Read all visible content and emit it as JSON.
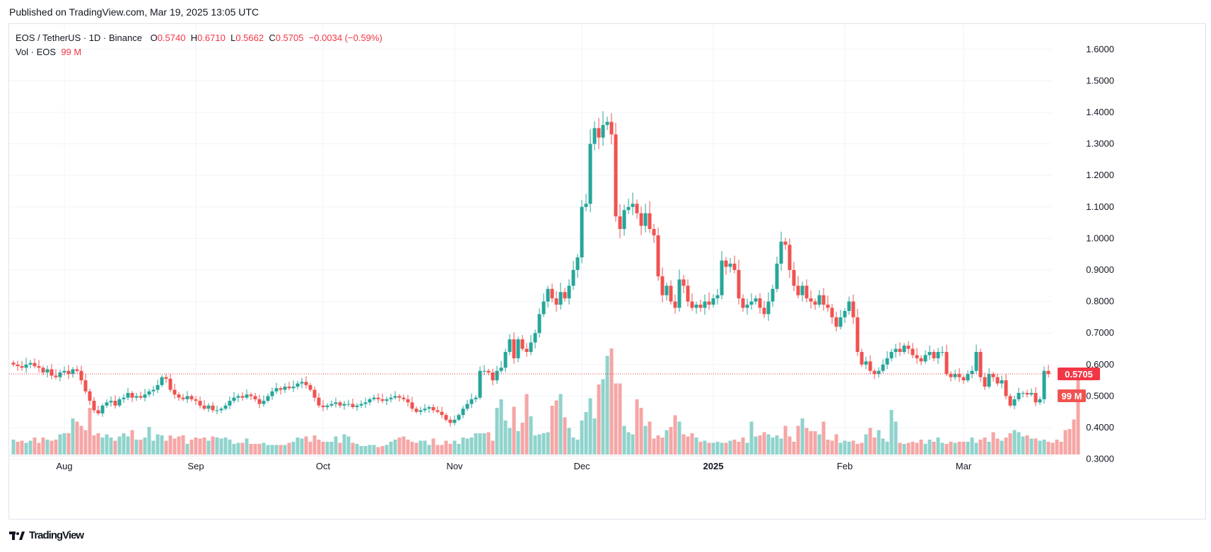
{
  "header": {
    "published": "Published on TradingView.com, Mar 19, 2025 13:05 UTC"
  },
  "legend": {
    "symbol": "EOS / TetherUS · 1D · Binance",
    "o_label": "O",
    "o_value": "0.5740",
    "h_label": "H",
    "h_value": "0.6710",
    "l_label": "L",
    "l_value": "0.5662",
    "c_label": "C",
    "c_value": "0.5705",
    "change": "−0.0034 (−0.59%)",
    "vol_label": "Vol · EOS",
    "vol_value": "99 M"
  },
  "footer": {
    "logo_text": "TradingView"
  },
  "colors": {
    "up": "#26a69a",
    "down": "#ef5350",
    "up_vol": "#8fd3cc",
    "down_vol": "#f5a6a5",
    "grid": "#f0f3fa",
    "price_line": "#f23645"
  },
  "chart_data": {
    "type": "candlestick",
    "title": "EOS / TetherUS · 1D · Binance",
    "ylim": [
      0.27,
      1.66
    ],
    "y_ticks": [
      "1.6000",
      "1.5000",
      "1.4000",
      "1.3000",
      "1.2000",
      "1.1000",
      "1.0000",
      "0.9000",
      "0.8000",
      "0.7000",
      "0.6000",
      "0.5000",
      "0.4000",
      "0.3000"
    ],
    "x_ticks": [
      {
        "label": "Aug",
        "index": 12
      },
      {
        "label": "Sep",
        "index": 43
      },
      {
        "label": "Oct",
        "index": 73
      },
      {
        "label": "Nov",
        "index": 104
      },
      {
        "label": "Dec",
        "index": 134
      },
      {
        "label": "2025",
        "index": 165
      },
      {
        "label": "Feb",
        "index": 196
      },
      {
        "label": "Mar",
        "index": 224
      }
    ],
    "last_price": "0.5705",
    "last_volume": "99 M",
    "closes": [
      0.6,
      0.595,
      0.59,
      0.6,
      0.605,
      0.595,
      0.59,
      0.575,
      0.585,
      0.565,
      0.56,
      0.575,
      0.58,
      0.57,
      0.585,
      0.58,
      0.55,
      0.515,
      0.485,
      0.455,
      0.445,
      0.47,
      0.48,
      0.485,
      0.47,
      0.49,
      0.495,
      0.51,
      0.495,
      0.5,
      0.495,
      0.505,
      0.515,
      0.52,
      0.535,
      0.56,
      0.555,
      0.52,
      0.505,
      0.495,
      0.49,
      0.5,
      0.49,
      0.485,
      0.47,
      0.46,
      0.47,
      0.455,
      0.455,
      0.46,
      0.47,
      0.485,
      0.495,
      0.5,
      0.495,
      0.505,
      0.5,
      0.49,
      0.475,
      0.485,
      0.5,
      0.515,
      0.525,
      0.52,
      0.53,
      0.525,
      0.53,
      0.54,
      0.545,
      0.535,
      0.52,
      0.495,
      0.47,
      0.465,
      0.47,
      0.475,
      0.48,
      0.47,
      0.475,
      0.475,
      0.465,
      0.47,
      0.475,
      0.48,
      0.49,
      0.495,
      0.49,
      0.485,
      0.49,
      0.495,
      0.5,
      0.495,
      0.49,
      0.48,
      0.46,
      0.45,
      0.455,
      0.46,
      0.465,
      0.455,
      0.45,
      0.44,
      0.425,
      0.415,
      0.425,
      0.44,
      0.46,
      0.475,
      0.49,
      0.495,
      0.58,
      0.58,
      0.575,
      0.55,
      0.58,
      0.59,
      0.64,
      0.68,
      0.62,
      0.68,
      0.65,
      0.64,
      0.67,
      0.7,
      0.76,
      0.8,
      0.84,
      0.81,
      0.79,
      0.83,
      0.81,
      0.85,
      0.9,
      0.94,
      1.1,
      1.11,
      1.3,
      1.35,
      1.32,
      1.36,
      1.37,
      1.33,
      1.07,
      1.03,
      1.09,
      1.1,
      1.11,
      1.08,
      1.04,
      1.08,
      1.03,
      1.01,
      0.88,
      0.82,
      0.85,
      0.8,
      0.78,
      0.87,
      0.85,
      0.8,
      0.78,
      0.79,
      0.78,
      0.8,
      0.79,
      0.81,
      0.82,
      0.93,
      0.91,
      0.92,
      0.9,
      0.81,
      0.78,
      0.79,
      0.8,
      0.81,
      0.78,
      0.76,
      0.8,
      0.84,
      0.92,
      0.99,
      0.98,
      0.9,
      0.85,
      0.82,
      0.85,
      0.81,
      0.8,
      0.79,
      0.82,
      0.79,
      0.78,
      0.75,
      0.72,
      0.75,
      0.77,
      0.8,
      0.75,
      0.64,
      0.6,
      0.61,
      0.58,
      0.57,
      0.58,
      0.6,
      0.62,
      0.64,
      0.65,
      0.64,
      0.66,
      0.65,
      0.63,
      0.62,
      0.61,
      0.63,
      0.64,
      0.62,
      0.64,
      0.64,
      0.57,
      0.56,
      0.57,
      0.56,
      0.55,
      0.57,
      0.58,
      0.64,
      0.56,
      0.53,
      0.57,
      0.56,
      0.54,
      0.55,
      0.5,
      0.47,
      0.49,
      0.51,
      0.51,
      0.505,
      0.51,
      0.48,
      0.49,
      0.58,
      0.5705
    ],
    "volume_units": "relative to peak (1.0 = max bar)",
    "volumes": [
      0.14,
      0.12,
      0.13,
      0.11,
      0.13,
      0.16,
      0.11,
      0.16,
      0.14,
      0.13,
      0.14,
      0.19,
      0.2,
      0.2,
      0.34,
      0.31,
      0.27,
      0.23,
      0.44,
      0.18,
      0.2,
      0.16,
      0.19,
      0.16,
      0.13,
      0.17,
      0.2,
      0.17,
      0.23,
      0.14,
      0.14,
      0.16,
      0.26,
      0.13,
      0.19,
      0.18,
      0.13,
      0.18,
      0.15,
      0.17,
      0.18,
      0.1,
      0.14,
      0.16,
      0.15,
      0.16,
      0.13,
      0.17,
      0.16,
      0.15,
      0.16,
      0.14,
      0.1,
      0.11,
      0.11,
      0.15,
      0.1,
      0.1,
      0.1,
      0.11,
      0.09,
      0.09,
      0.09,
      0.09,
      0.09,
      0.11,
      0.12,
      0.16,
      0.15,
      0.17,
      0.12,
      0.18,
      0.14,
      0.12,
      0.12,
      0.12,
      0.17,
      0.11,
      0.19,
      0.17,
      0.11,
      0.1,
      0.08,
      0.08,
      0.09,
      0.09,
      0.07,
      0.08,
      0.09,
      0.12,
      0.14,
      0.16,
      0.17,
      0.14,
      0.12,
      0.11,
      0.13,
      0.13,
      0.09,
      0.15,
      0.09,
      0.09,
      0.13,
      0.1,
      0.13,
      0.1,
      0.16,
      0.15,
      0.16,
      0.2,
      0.2,
      0.2,
      0.21,
      0.13,
      0.44,
      0.52,
      0.32,
      0.25,
      0.45,
      0.22,
      0.3,
      0.57,
      0.36,
      0.18,
      0.19,
      0.2,
      0.21,
      0.46,
      0.51,
      0.57,
      0.35,
      0.25,
      0.16,
      0.14,
      0.32,
      0.4,
      0.53,
      0.34,
      0.66,
      0.71,
      0.93,
      1.0,
      0.67,
      0.67,
      0.27,
      0.21,
      0.19,
      0.52,
      0.44,
      0.27,
      0.31,
      0.15,
      0.18,
      0.16,
      0.23,
      0.26,
      0.37,
      0.31,
      0.19,
      0.17,
      0.2,
      0.16,
      0.12,
      0.13,
      0.11,
      0.11,
      0.12,
      0.11,
      0.11,
      0.13,
      0.14,
      0.12,
      0.16,
      0.11,
      0.31,
      0.17,
      0.18,
      0.21,
      0.19,
      0.16,
      0.18,
      0.15,
      0.27,
      0.17,
      0.12,
      0.27,
      0.34,
      0.25,
      0.22,
      0.22,
      0.19,
      0.31,
      0.14,
      0.13,
      0.19,
      0.11,
      0.13,
      0.12,
      0.13,
      0.1,
      0.11,
      0.19,
      0.25,
      0.16,
      0.23,
      0.15,
      0.12,
      0.42,
      0.31,
      0.11,
      0.1,
      0.11,
      0.12,
      0.11,
      0.14,
      0.1,
      0.14,
      0.12,
      0.16,
      0.11,
      0.1,
      0.12,
      0.11,
      0.12,
      0.12,
      0.12,
      0.16,
      0.11,
      0.14,
      0.16,
      0.12,
      0.21,
      0.15,
      0.13,
      0.16,
      0.2,
      0.23,
      0.21,
      0.17,
      0.18,
      0.15,
      0.15,
      0.13,
      0.14,
      0.12,
      0.11,
      0.14,
      0.12,
      0.23,
      0.24,
      0.33,
      0.7
    ]
  }
}
